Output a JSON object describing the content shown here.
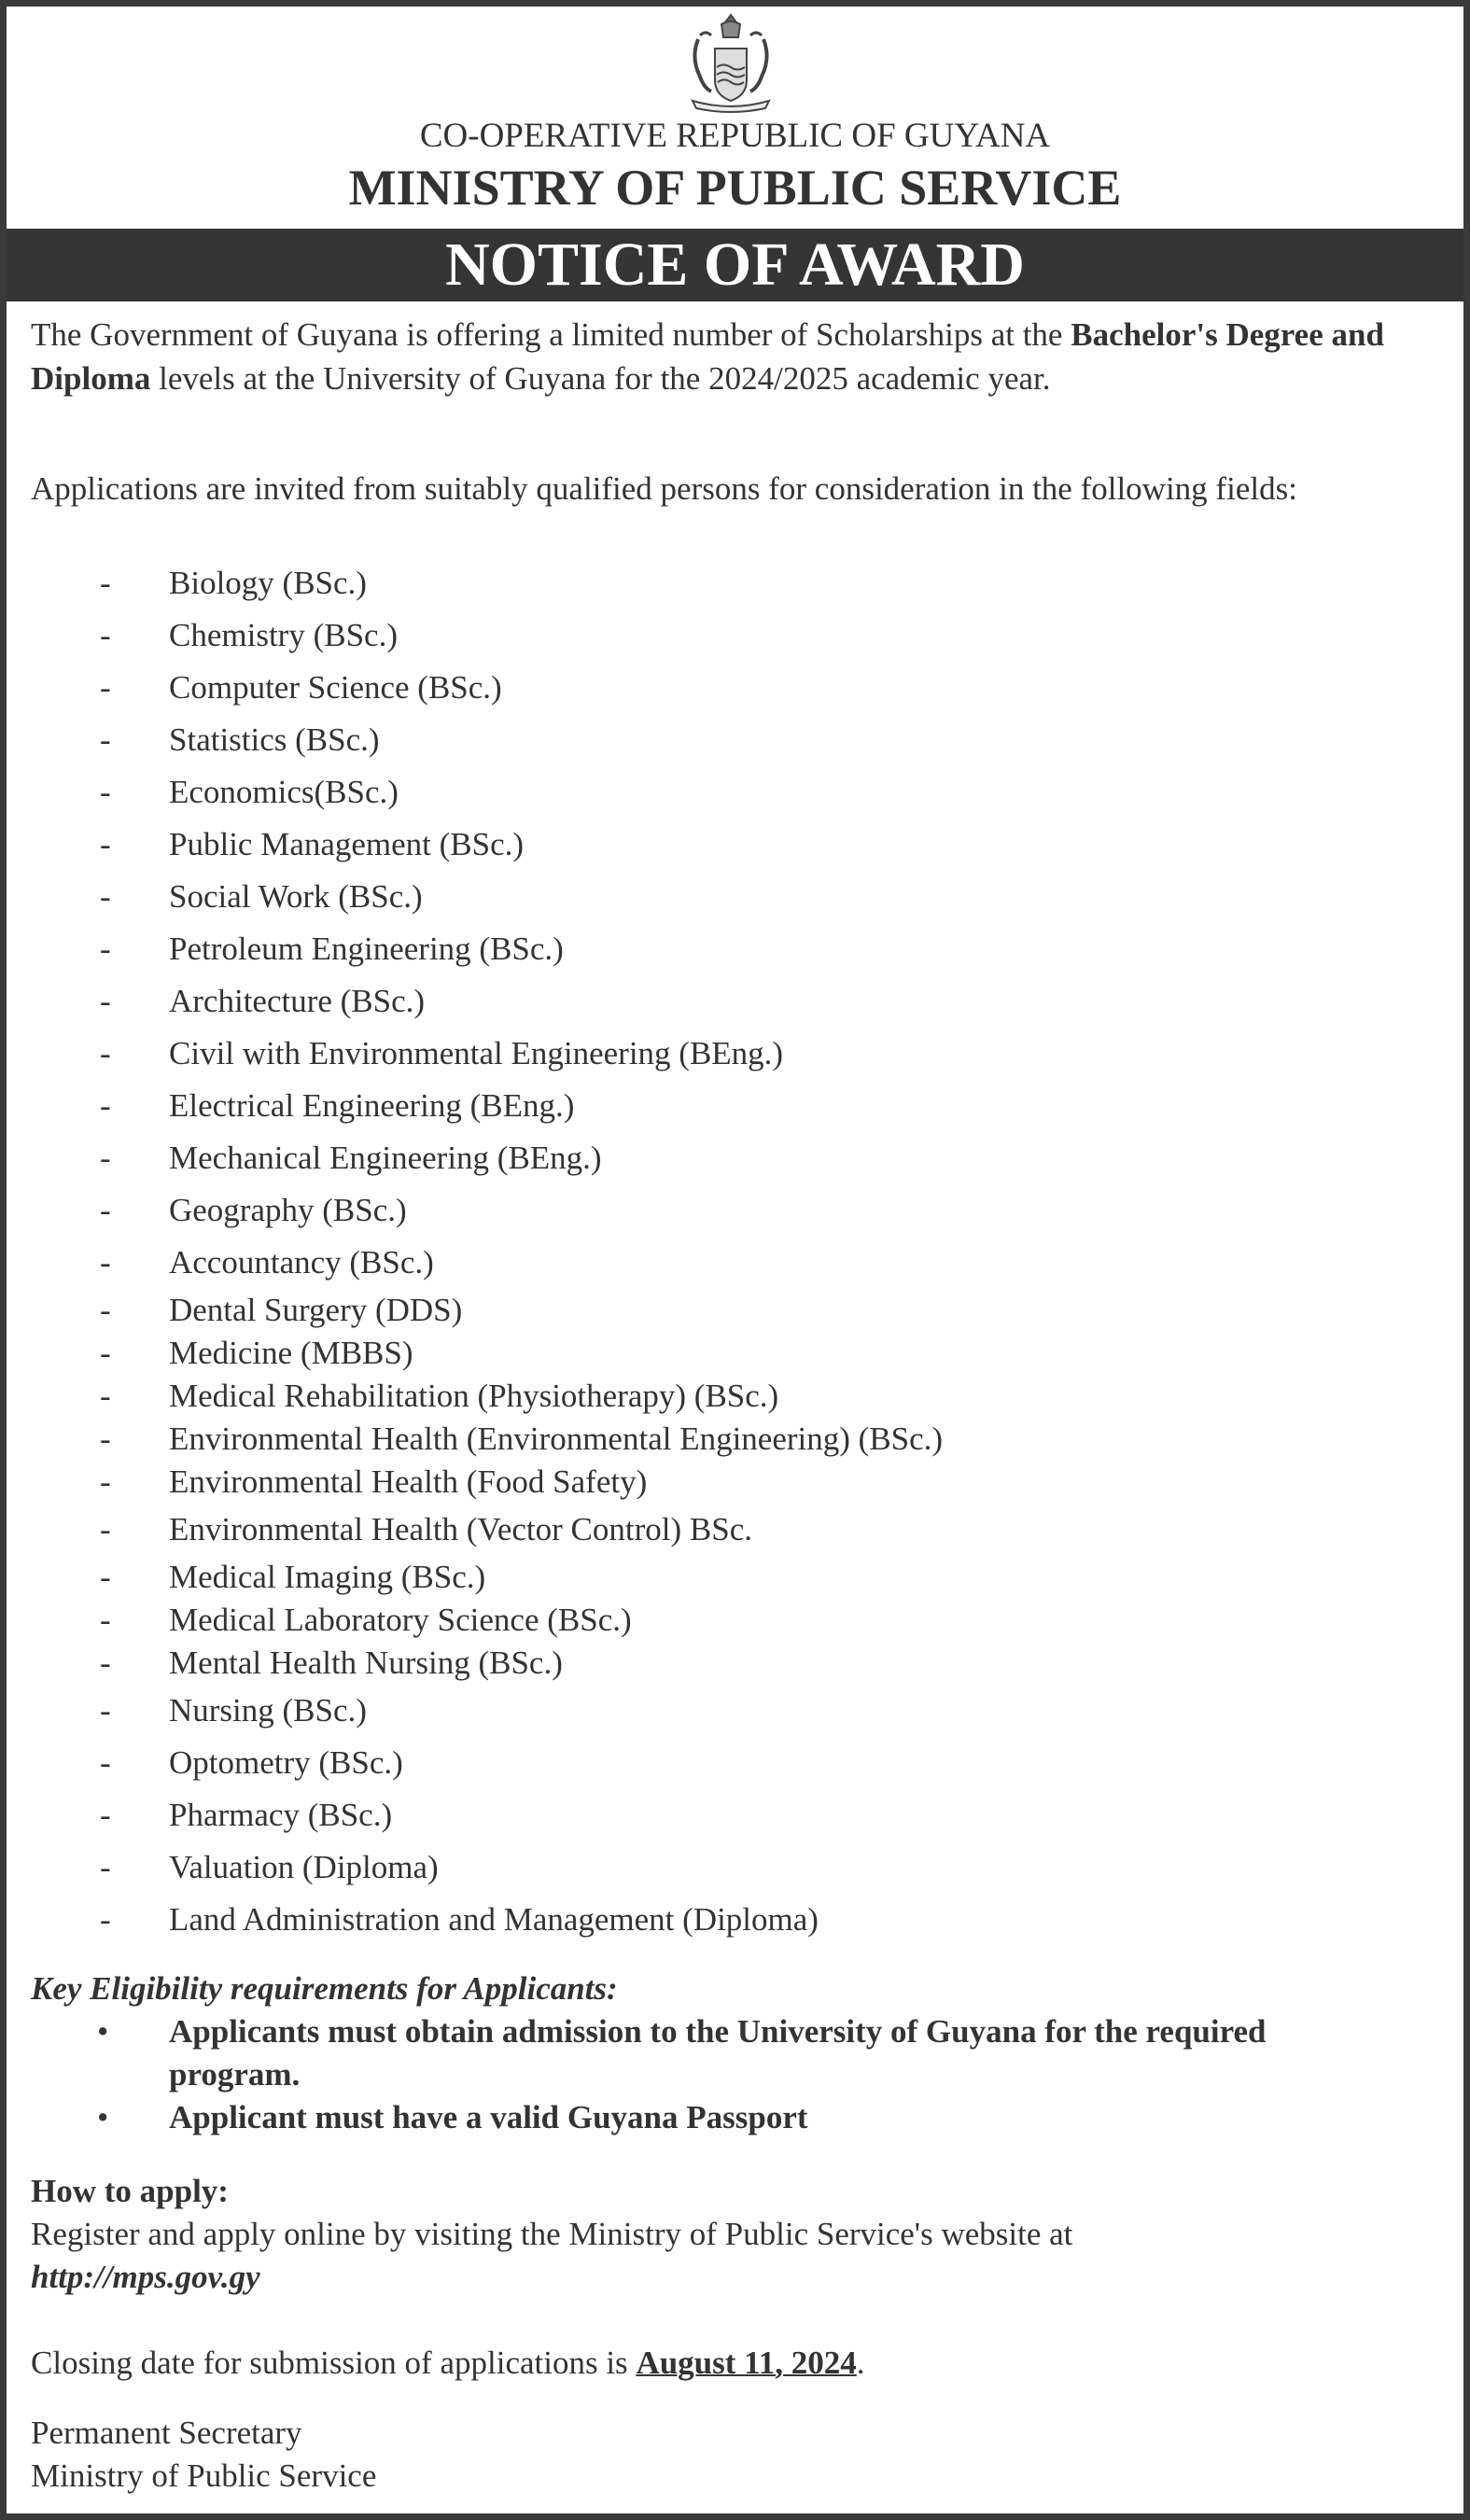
{
  "header": {
    "country": "CO-OPERATIVE REPUBLIC OF GUYANA",
    "ministry": "MINISTRY OF PUBLIC SERVICE",
    "title": "NOTICE OF AWARD",
    "crest": "guyana-coat-of-arms"
  },
  "intro": {
    "part1": "The Government of Guyana is offering a limited number of Scholarships at the ",
    "bold": "Bachelor's Degree and Diploma",
    "part2": " levels at the University of Guyana for the 2024/2025 academic year."
  },
  "invite": "Applications are invited from suitably qualified persons for consideration in the following fields:",
  "fields": [
    "Biology (BSc.)",
    "Chemistry (BSc.)",
    "Computer Science (BSc.)",
    "Statistics (BSc.)",
    "Economics(BSc.)",
    "Public Management (BSc.)",
    "Social Work (BSc.)",
    "Petroleum Engineering (BSc.)",
    "Architecture (BSc.)",
    "Civil with Environmental Engineering (BEng.)",
    "Electrical Engineering (BEng.)",
    "Mechanical Engineering (BEng.)",
    "Geography (BSc.)",
    "Accountancy (BSc.)",
    "Dental Surgery (DDS)",
    "Medicine (MBBS)",
    "Medical Rehabilitation (Physiotherapy) (BSc.)",
    "Environmental Health (Environmental Engineering) (BSc.)",
    "Environmental Health (Food Safety)",
    "Environmental Health (Vector Control) BSc.",
    "Medical Imaging (BSc.)",
    "Medical Laboratory Science (BSc.)",
    "Mental Health Nursing (BSc.)",
    "Nursing (BSc.)",
    "Optometry (BSc.)",
    "Pharmacy (BSc.)",
    "Valuation (Diploma)",
    "Land Administration and Management (Diploma)"
  ],
  "dash": "-",
  "bullet": "•",
  "eligibility": {
    "heading": "Key Eligibility requirements for Applicants:",
    "items": [
      "Applicants must obtain admission to the University of Guyana for the required program.",
      "Applicant must have a valid Guyana Passport"
    ]
  },
  "apply": {
    "heading": "How to apply:",
    "text": "Register and apply online by visiting the Ministry of Public Service's website at",
    "url": "http://mps.gov.gy"
  },
  "closing": {
    "text": "Closing date for submission of applications is ",
    "date": "August 11, 2024",
    "end": "."
  },
  "signature": {
    "title": "Permanent Secretary",
    "org": "Ministry of Public Service"
  }
}
